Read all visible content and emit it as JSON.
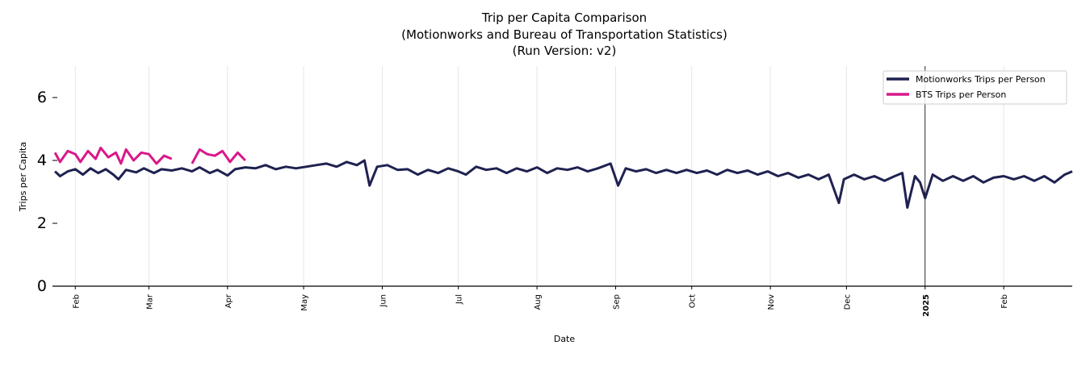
{
  "chart_data": {
    "type": "line",
    "title": "Trip per Capita Comparison",
    "subtitle_lines": [
      "(Motionworks and Bureau of Transportation Statistics)",
      "(Run Version: v2)"
    ],
    "xlabel": "Date",
    "ylabel": "Trips per Capita",
    "xlim": [
      "2024-01-23",
      "2025-02-28"
    ],
    "ylim": [
      0,
      7
    ],
    "yticks": [
      0,
      2,
      4,
      6
    ],
    "xticks": [
      {
        "date": "2024-02-01",
        "label": "Feb"
      },
      {
        "date": "2024-03-01",
        "label": "Mar"
      },
      {
        "date": "2024-04-01",
        "label": "Apr"
      },
      {
        "date": "2024-05-01",
        "label": "May"
      },
      {
        "date": "2024-06-01",
        "label": "Jun"
      },
      {
        "date": "2024-07-01",
        "label": "Jul"
      },
      {
        "date": "2024-08-01",
        "label": "Aug"
      },
      {
        "date": "2024-09-01",
        "label": "Sep"
      },
      {
        "date": "2024-10-01",
        "label": "Oct"
      },
      {
        "date": "2024-11-01",
        "label": "Nov"
      },
      {
        "date": "2024-12-01",
        "label": "Dec"
      },
      {
        "date": "2025-01-01",
        "label": "2025",
        "bold": true
      },
      {
        "date": "2025-02-01",
        "label": "Feb"
      }
    ],
    "grid": "vertical",
    "reference_line": "2025-01-01",
    "legend_position": "top-right",
    "series": [
      {
        "name": "Motionworks Trips per Person",
        "color": "#1f2150",
        "points": [
          [
            "2024-01-24",
            3.65
          ],
          [
            "2024-01-26",
            3.5
          ],
          [
            "2024-01-29",
            3.65
          ],
          [
            "2024-02-01",
            3.72
          ],
          [
            "2024-02-04",
            3.55
          ],
          [
            "2024-02-07",
            3.75
          ],
          [
            "2024-02-10",
            3.6
          ],
          [
            "2024-02-13",
            3.72
          ],
          [
            "2024-02-16",
            3.55
          ],
          [
            "2024-02-18",
            3.4
          ],
          [
            "2024-02-21",
            3.7
          ],
          [
            "2024-02-25",
            3.62
          ],
          [
            "2024-02-28",
            3.75
          ],
          [
            "2024-03-03",
            3.6
          ],
          [
            "2024-03-06",
            3.72
          ],
          [
            "2024-03-10",
            3.68
          ],
          [
            "2024-03-14",
            3.75
          ],
          [
            "2024-03-18",
            3.65
          ],
          [
            "2024-03-21",
            3.78
          ],
          [
            "2024-03-25",
            3.6
          ],
          [
            "2024-03-28",
            3.7
          ],
          [
            "2024-04-01",
            3.52
          ],
          [
            "2024-04-04",
            3.72
          ],
          [
            "2024-04-08",
            3.78
          ],
          [
            "2024-04-12",
            3.75
          ],
          [
            "2024-04-16",
            3.85
          ],
          [
            "2024-04-20",
            3.72
          ],
          [
            "2024-04-24",
            3.8
          ],
          [
            "2024-04-28",
            3.75
          ],
          [
            "2024-05-02",
            3.8
          ],
          [
            "2024-05-06",
            3.85
          ],
          [
            "2024-05-10",
            3.9
          ],
          [
            "2024-05-14",
            3.8
          ],
          [
            "2024-05-18",
            3.95
          ],
          [
            "2024-05-22",
            3.85
          ],
          [
            "2024-05-25",
            4.0
          ],
          [
            "2024-05-27",
            3.2
          ],
          [
            "2024-05-30",
            3.8
          ],
          [
            "2024-06-03",
            3.85
          ],
          [
            "2024-06-07",
            3.7
          ],
          [
            "2024-06-11",
            3.72
          ],
          [
            "2024-06-15",
            3.55
          ],
          [
            "2024-06-19",
            3.7
          ],
          [
            "2024-06-23",
            3.6
          ],
          [
            "2024-06-27",
            3.75
          ],
          [
            "2024-07-01",
            3.65
          ],
          [
            "2024-07-04",
            3.55
          ],
          [
            "2024-07-08",
            3.8
          ],
          [
            "2024-07-12",
            3.7
          ],
          [
            "2024-07-16",
            3.75
          ],
          [
            "2024-07-20",
            3.6
          ],
          [
            "2024-07-24",
            3.75
          ],
          [
            "2024-07-28",
            3.65
          ],
          [
            "2024-08-01",
            3.78
          ],
          [
            "2024-08-05",
            3.6
          ],
          [
            "2024-08-09",
            3.75
          ],
          [
            "2024-08-13",
            3.7
          ],
          [
            "2024-08-17",
            3.78
          ],
          [
            "2024-08-21",
            3.65
          ],
          [
            "2024-08-25",
            3.75
          ],
          [
            "2024-08-30",
            3.9
          ],
          [
            "2024-09-02",
            3.2
          ],
          [
            "2024-09-05",
            3.75
          ],
          [
            "2024-09-09",
            3.65
          ],
          [
            "2024-09-13",
            3.72
          ],
          [
            "2024-09-17",
            3.6
          ],
          [
            "2024-09-21",
            3.7
          ],
          [
            "2024-09-25",
            3.6
          ],
          [
            "2024-09-29",
            3.7
          ],
          [
            "2024-10-03",
            3.6
          ],
          [
            "2024-10-07",
            3.68
          ],
          [
            "2024-10-11",
            3.55
          ],
          [
            "2024-10-15",
            3.7
          ],
          [
            "2024-10-19",
            3.6
          ],
          [
            "2024-10-23",
            3.68
          ],
          [
            "2024-10-27",
            3.55
          ],
          [
            "2024-10-31",
            3.65
          ],
          [
            "2024-11-04",
            3.5
          ],
          [
            "2024-11-08",
            3.6
          ],
          [
            "2024-11-12",
            3.45
          ],
          [
            "2024-11-16",
            3.55
          ],
          [
            "2024-11-20",
            3.4
          ],
          [
            "2024-11-24",
            3.55
          ],
          [
            "2024-11-28",
            2.65
          ],
          [
            "2024-11-30",
            3.4
          ],
          [
            "2024-12-04",
            3.55
          ],
          [
            "2024-12-08",
            3.4
          ],
          [
            "2024-12-12",
            3.5
          ],
          [
            "2024-12-16",
            3.35
          ],
          [
            "2024-12-20",
            3.5
          ],
          [
            "2024-12-23",
            3.6
          ],
          [
            "2024-12-25",
            2.5
          ],
          [
            "2024-12-28",
            3.5
          ],
          [
            "2024-12-30",
            3.3
          ],
          [
            "2025-01-01",
            2.8
          ],
          [
            "2025-01-04",
            3.55
          ],
          [
            "2025-01-08",
            3.35
          ],
          [
            "2025-01-12",
            3.5
          ],
          [
            "2025-01-16",
            3.35
          ],
          [
            "2025-01-20",
            3.5
          ],
          [
            "2025-01-24",
            3.3
          ],
          [
            "2025-01-28",
            3.45
          ],
          [
            "2025-02-01",
            3.5
          ],
          [
            "2025-02-05",
            3.4
          ],
          [
            "2025-02-09",
            3.5
          ],
          [
            "2025-02-13",
            3.35
          ],
          [
            "2025-02-17",
            3.5
          ],
          [
            "2025-02-21",
            3.3
          ],
          [
            "2025-02-25",
            3.55
          ],
          [
            "2025-02-28",
            3.65
          ]
        ]
      },
      {
        "name": "BTS Trips per Person",
        "color": "#d9178a",
        "points": [
          [
            "2024-01-24",
            4.25
          ],
          [
            "2024-01-26",
            3.95
          ],
          [
            "2024-01-29",
            4.3
          ],
          [
            "2024-02-01",
            4.2
          ],
          [
            "2024-02-03",
            3.95
          ],
          [
            "2024-02-06",
            4.3
          ],
          [
            "2024-02-09",
            4.05
          ],
          [
            "2024-02-11",
            4.4
          ],
          [
            "2024-02-14",
            4.1
          ],
          [
            "2024-02-17",
            4.25
          ],
          [
            "2024-02-19",
            3.9
          ],
          [
            "2024-02-21",
            4.35
          ],
          [
            "2024-02-24",
            4.0
          ],
          [
            "2024-02-27",
            4.25
          ],
          [
            "2024-03-01",
            4.2
          ],
          [
            "2024-03-04",
            3.9
          ],
          [
            "2024-03-07",
            4.15
          ],
          [
            "2024-03-10",
            4.05
          ],
          [
            "2024-03-14",
            null
          ],
          [
            "2024-03-18",
            3.9
          ],
          [
            "2024-03-21",
            4.35
          ],
          [
            "2024-03-24",
            4.2
          ],
          [
            "2024-03-27",
            4.15
          ],
          [
            "2024-03-30",
            4.3
          ],
          [
            "2024-04-02",
            3.95
          ],
          [
            "2024-04-05",
            4.25
          ],
          [
            "2024-04-08",
            4.0
          ]
        ]
      }
    ]
  }
}
